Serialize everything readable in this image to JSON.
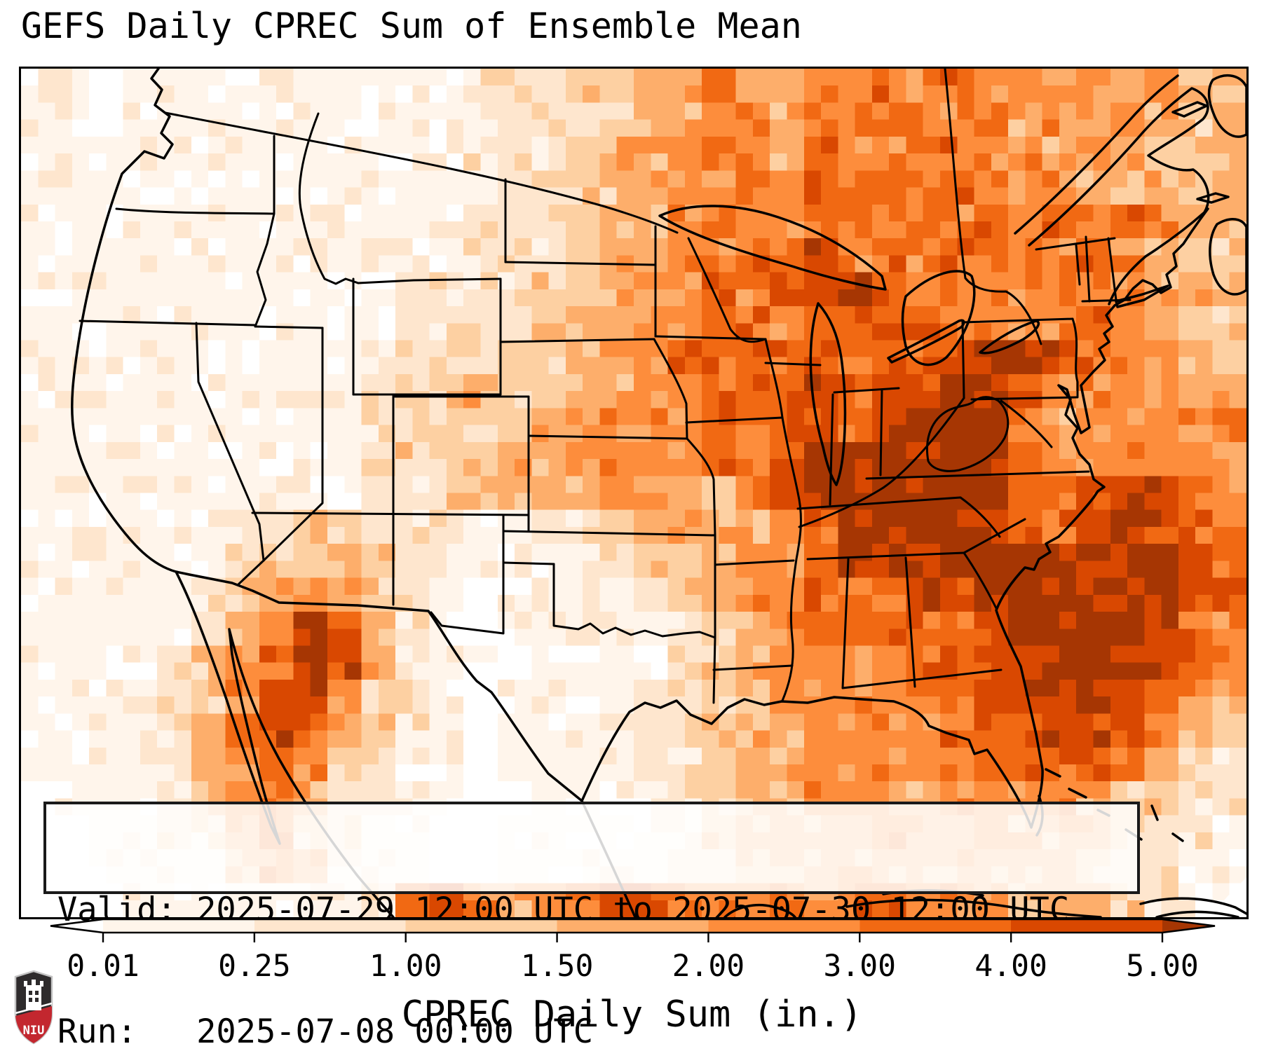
{
  "title": "GEFS Daily CPREC Sum of Ensemble Mean",
  "info": {
    "valid_line": "Valid: 2025-07-29 12:00 UTC to 2025-07-30 12:00 UTC",
    "run_line": "Run:   2025-07-08 00:00 UTC"
  },
  "logo": {
    "text": "NIU",
    "shield_color": "#2e2b2c",
    "band_color": "#c3272f"
  },
  "chart_data": {
    "type": "heatmap",
    "title": "GEFS Daily CPREC Sum of Ensemble Mean",
    "region": "Contiguous United States with portions of Canada, Mexico, Gulf of Mexico and western Atlantic",
    "annotations": [
      "Valid: 2025-07-29 12:00 UTC to 2025-07-30 12:00 UTC",
      "Run:   2025-07-08 00:00 UTC"
    ],
    "units": "in.",
    "colorbar": {
      "label": "CPREC Daily Sum (in.)",
      "boundaries": [
        0.01,
        0.25,
        1.0,
        1.5,
        2.0,
        3.0,
        4.0,
        5.0
      ],
      "tick_labels": [
        "0.01",
        "0.25",
        "1.00",
        "1.50",
        "2.00",
        "3.00",
        "4.00",
        "5.00"
      ],
      "segment_colors": [
        "#fff5eb",
        "#fee6ce",
        "#fdd0a2",
        "#fdae6b",
        "#fd8d3c",
        "#f16913",
        "#d94801"
      ],
      "under_color": "#ffffff",
      "over_color": "#a63603",
      "extend": "both",
      "orientation": "horizontal"
    },
    "grid": {
      "note": "Coarse reading of the plotted precipitation field. Each character is a color level index into palette: 0 = below 0.01 in (white) up to 8 = above 5.00 in (dark brown). 36 columns west-to-east, 25 rows north-to-south.",
      "cols": 36,
      "rows": 25,
      "palette": [
        "#ffffff",
        "#fff5eb",
        "#fee6ce",
        "#fdd0a2",
        "#fdae6b",
        "#fd8d3c",
        "#f16913",
        "#d94801",
        "#a63603"
      ],
      "rows_data": [
        "110111111111122233455445565655454543",
        "110111111111112223445545566564545434",
        "111111111111122234456546556655454334",
        "111111111111112233455656665654543434",
        "111111111111122234456556656565656544",
        "111111111121122234455667565665565433",
        "111111111112222334456577865655655443",
        "111111111112222344556656666565565433",
        "111111111122223344566666666788765543",
        "111111111123343344556667677886555444",
        "111111111123333445556667678885454556",
        "111111111123334455556678888886555554",
        "111111111122334445543678888886677765",
        "111111223322211223444456888876678766",
        "111111233432211112334556877888888876",
        "111112345432101111234556667788888876",
        "111112457642101111123456666678888765",
        "111123568742110111123455556677888765",
        "111123577532101111223455556677787654",
        "111124676432101111223445555666777543",
        "111124565321101111223445555566676432",
        "011123564221100111123445554555543322",
        "001122463211001111123444454454443221",
        "001111354211001111122344444444432211",
        "000111111126754557755565665554443211"
      ]
    }
  }
}
